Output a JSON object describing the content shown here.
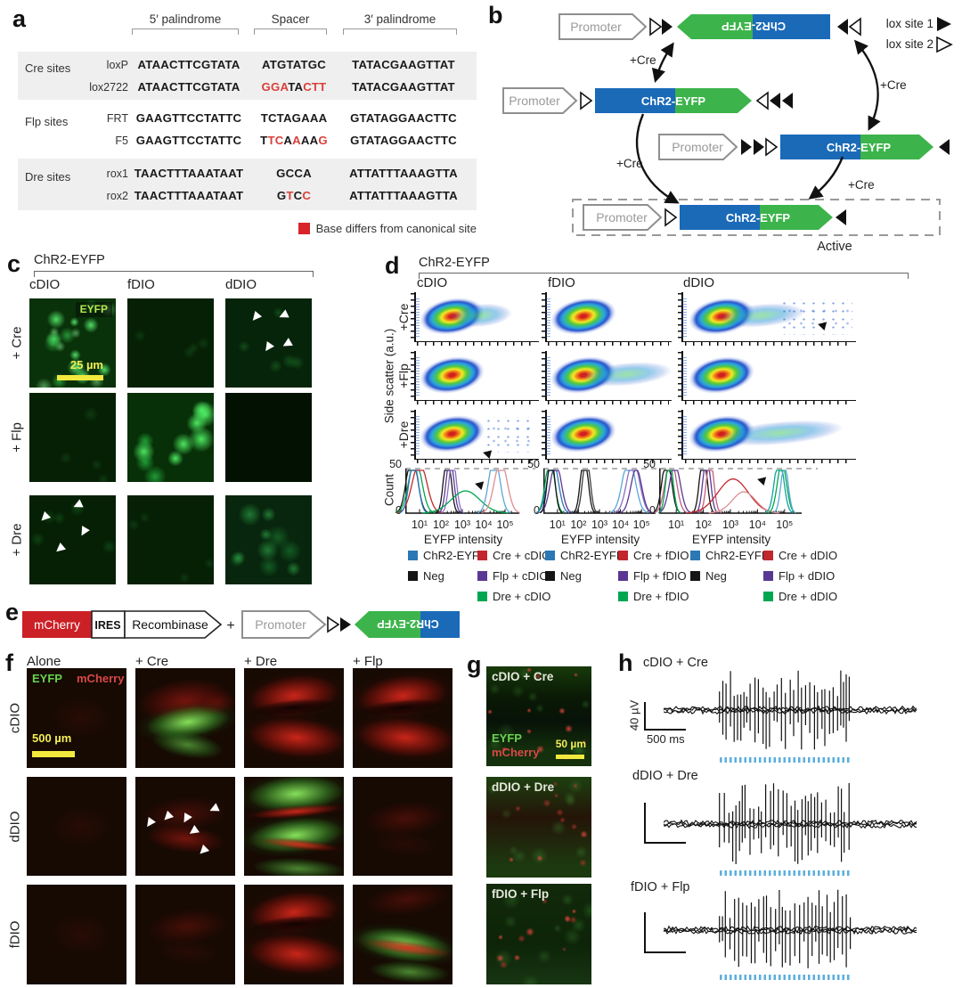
{
  "labels": {
    "a": "a",
    "b": "b",
    "c": "c",
    "d": "d",
    "e": "e",
    "f": "f",
    "g": "g",
    "h": "h"
  },
  "colors": {
    "gene_green": "#3cb44b",
    "gene_blue": "#1a6ab8",
    "mcherry_red": "#cb2026",
    "seq_red": "#d9403a",
    "legend_blue": "#2b78b5",
    "legend_red": "#c2272d",
    "legend_purple": "#5b3794",
    "legend_green": "#00a651",
    "stim_blue": "#5aaede",
    "scalebar_yellow": "#f2e93e"
  },
  "panel_a": {
    "headers": [
      "5′ palindrome",
      "Spacer",
      "3′ palindrome"
    ],
    "groups": [
      {
        "name": "Cre sites",
        "shaded": true,
        "rows": [
          {
            "site": "loxP",
            "p5": "ATAACTTCGTATA",
            "spacer": [
              {
                "t": "ATGTATGC",
                "red": false
              }
            ],
            "p3": "TATACGAAGTTAT"
          },
          {
            "site": "lox2722",
            "p5": "ATAACTTCGTATA",
            "spacer": [
              {
                "t": "GGA",
                "red": true
              },
              {
                "t": "TA",
                "red": false
              },
              {
                "t": "CTT",
                "red": true
              }
            ],
            "p3": "TATACGAAGTTAT"
          }
        ]
      },
      {
        "name": "Flp sites",
        "shaded": false,
        "rows": [
          {
            "site": "FRT",
            "p5": "GAAGTTCCTATTC",
            "spacer": [
              {
                "t": "TCTAGAAA",
                "red": false
              }
            ],
            "p3": "GTATAGGAACTTC"
          },
          {
            "site": "F5",
            "p5": "GAAGTTCCTATTC",
            "spacer": [
              {
                "t": "T",
                "red": false
              },
              {
                "t": "TC",
                "red": true
              },
              {
                "t": "A",
                "red": false
              },
              {
                "t": "A",
                "red": true
              },
              {
                "t": "AA",
                "red": false
              },
              {
                "t": "G",
                "red": true
              }
            ],
            "p3": "GTATAGGAACTTC"
          }
        ]
      },
      {
        "name": "Dre sites",
        "shaded": true,
        "rows": [
          {
            "site": "rox1",
            "p5": "TAACTTTAAATAAT",
            "spacer": [
              {
                "t": "GCCA",
                "red": false
              }
            ],
            "p3": "ATTATTTAAAGTTA"
          },
          {
            "site": "rox2",
            "p5": "TAACTTTAAATAAT",
            "spacer": [
              {
                "t": "G",
                "red": false
              },
              {
                "t": "T",
                "red": true
              },
              {
                "t": "C",
                "red": false
              },
              {
                "t": "C",
                "red": true
              }
            ],
            "p3": "ATTATTTAAAGTTA"
          }
        ]
      }
    ],
    "legend": "Base differs from canonical site"
  },
  "panel_b": {
    "promoter": "Promoter",
    "gene": "ChR2-EYFP",
    "cre": "+Cre",
    "active": "Active",
    "lox1": "lox site 1",
    "lox2": "lox site 2"
  },
  "panel_c": {
    "title": "ChR2-EYFP",
    "cols": [
      "cDIO",
      "fDIO",
      "dDIO"
    ],
    "rows": [
      "+ Cre",
      "+ Flp",
      "+ Dre"
    ],
    "overlay": {
      "eyfp": "EYFP",
      "scale": "25 µm"
    },
    "cells": [
      [
        "bright",
        "dim",
        "dim-arrows-a"
      ],
      [
        "dim",
        "bright2",
        "black"
      ],
      [
        "dim-arrows-b",
        "dim",
        "moderate"
      ]
    ]
  },
  "panel_d": {
    "title": "ChR2-EYFP",
    "cols": [
      "cDIO",
      "fDIO",
      "dDIO"
    ],
    "rows": [
      "+Cre",
      "+Flp",
      "+Dre"
    ],
    "ylabel_scatter": "Side scatter (a.u.)",
    "ylabel_hist": "Count",
    "y_max": "50",
    "y_min": "0",
    "xticks": [
      "10¹",
      "10²",
      "10³",
      "10⁴",
      "10⁵"
    ],
    "xlabel": "EYFP intensity",
    "scatter": [
      [
        {
          "tail": true
        },
        {},
        {
          "tail": true,
          "sparse": true,
          "arrow": [
            0.78,
            0.58
          ]
        }
      ],
      [
        {},
        {
          "tail": true,
          "long": true
        },
        {}
      ],
      [
        {
          "sparse": true,
          "arrow": [
            0.55,
            0.78
          ]
        },
        {},
        {
          "tail": true,
          "long": true
        }
      ]
    ],
    "hists": [
      {
        "arrow": [
          0.6,
          0.3
        ],
        "curves": [
          {
            "c": "#151515",
            "x": 0.03,
            "s": 6,
            "h": 1.4
          },
          {
            "c": "#00a651",
            "x": 0.06,
            "s": 7,
            "h": 1.3
          },
          {
            "c": "#c2272d",
            "x": 0.1,
            "s": 8,
            "h": 1.2
          },
          {
            "c": "#2b78b5",
            "x": 0.045,
            "s": 5,
            "h": 1.25
          },
          {
            "c": "#151515",
            "x": 0.36,
            "s": 4,
            "h": 1.45
          },
          {
            "c": "#5b3794",
            "x": 0.385,
            "s": 4,
            "h": 1.4
          },
          {
            "c": "#8b6fc0",
            "x": 0.41,
            "s": 4,
            "h": 1.3
          },
          {
            "c": "#00a651",
            "x": 0.53,
            "s": 16,
            "h": 0.52
          },
          {
            "c": "#5aa7d8",
            "x": 0.8,
            "s": 6,
            "h": 1.35
          },
          {
            "c": "#dc8e92",
            "x": 0.86,
            "s": 7,
            "h": 1.25
          }
        ]
      },
      {
        "curves": [
          {
            "c": "#00a651",
            "x": 0.03,
            "s": 5,
            "h": 1.3
          },
          {
            "c": "#2b78b5",
            "x": 0.055,
            "s": 6,
            "h": 1.3
          },
          {
            "c": "#5b3794",
            "x": 0.085,
            "s": 6,
            "h": 1.2
          },
          {
            "c": "#151515",
            "x": 0.04,
            "s": 4,
            "h": 1.35
          },
          {
            "c": "#151515",
            "x": 0.355,
            "s": 4,
            "h": 1.45
          },
          {
            "c": "#3a3a3a",
            "x": 0.375,
            "s": 4,
            "h": 1.4
          },
          {
            "c": "#5aa7d8",
            "x": 0.78,
            "s": 7,
            "h": 1.3
          },
          {
            "c": "#8b6fc0",
            "x": 0.82,
            "s": 7,
            "h": 1.25
          },
          {
            "c": "#5b3794",
            "x": 0.85,
            "s": 6,
            "h": 1.05
          }
        ]
      },
      {
        "arrow": [
          0.68,
          0.22
        ],
        "curves": [
          {
            "c": "#151515",
            "x": 0.03,
            "s": 5,
            "h": 1.35
          },
          {
            "c": "#c06080",
            "x": 0.06,
            "s": 6,
            "h": 1.3
          },
          {
            "c": "#5b3794",
            "x": 0.09,
            "s": 6,
            "h": 1.15
          },
          {
            "c": "#00a651",
            "x": 0.05,
            "s": 4,
            "h": 1.25
          },
          {
            "c": "#151515",
            "x": 0.3,
            "s": 4,
            "h": 1.45
          },
          {
            "c": "#5b3794",
            "x": 0.325,
            "s": 4,
            "h": 1.4
          },
          {
            "c": "#c06080",
            "x": 0.35,
            "s": 4,
            "h": 1.3
          },
          {
            "c": "#c2272d",
            "x": 0.52,
            "s": 17,
            "h": 0.8
          },
          {
            "c": "#dc8e92",
            "x": 0.6,
            "s": 13,
            "h": 0.5
          },
          {
            "c": "#11a39b",
            "x": 0.86,
            "s": 5,
            "h": 1.35
          },
          {
            "c": "#00a651",
            "x": 0.88,
            "s": 5,
            "h": 1.2
          },
          {
            "c": "#5aa7d8",
            "x": 0.9,
            "s": 4,
            "h": 1.15
          }
        ]
      }
    ],
    "legends": [
      {
        "a": [
          {
            "c": "#2b78b5",
            "t": "ChR2-EYFP"
          },
          {
            "c": "#151515",
            "t": "Neg"
          }
        ],
        "b": [
          {
            "c": "#c2272d",
            "t": "Cre + cDIO"
          },
          {
            "c": "#5b3794",
            "t": "Flp + cDIO"
          },
          {
            "c": "#00a651",
            "t": "Dre + cDIO"
          }
        ]
      },
      {
        "a": [
          {
            "c": "#2b78b5",
            "t": "ChR2-EYFP"
          },
          {
            "c": "#151515",
            "t": "Neg"
          }
        ],
        "b": [
          {
            "c": "#c2272d",
            "t": "Cre + fDIO"
          },
          {
            "c": "#5b3794",
            "t": "Flp + fDIO"
          },
          {
            "c": "#00a651",
            "t": "Dre + fDIO"
          }
        ]
      },
      {
        "a": [
          {
            "c": "#2b78b5",
            "t": "ChR2-EYFP"
          },
          {
            "c": "#151515",
            "t": "Neg"
          }
        ],
        "b": [
          {
            "c": "#c2272d",
            "t": "Cre + dDIO"
          },
          {
            "c": "#5b3794",
            "t": "Flp + dDIO"
          },
          {
            "c": "#00a651",
            "t": "Dre + dDIO"
          }
        ]
      }
    ]
  },
  "panel_e": {
    "mcherry": "mCherry",
    "ires": "IRES",
    "recombinase": "Recombinase",
    "plus": "+",
    "promoter": "Promoter",
    "gene": "ChR2-EYFP"
  },
  "panel_f": {
    "cols": [
      "Alone",
      "+ Cre",
      "+ Dre",
      "+ Flp"
    ],
    "rows": [
      "cDIO",
      "dDIO",
      "fDIO"
    ],
    "overlay": {
      "eyfp": "EYFP",
      "mcherry": "mCherry",
      "scale": "500 µm"
    },
    "cells": [
      [
        "dark",
        "green-red",
        "red",
        "red"
      ],
      [
        "dark",
        "red-arrows",
        "green-strong",
        "red-dim"
      ],
      [
        "dark",
        "red-dim",
        "red",
        "green-red2"
      ]
    ]
  },
  "panel_g": {
    "overlay": {
      "eyfp": "EYFP",
      "mcherry": "mCherry",
      "scale": "50 µm"
    },
    "images": [
      {
        "title": "cDIO + Cre",
        "type": "g1",
        "overlay": true
      },
      {
        "title": "dDIO + Dre",
        "type": "g2"
      },
      {
        "title": "fDIO + Flp",
        "type": "g3"
      }
    ]
  },
  "panel_h": {
    "traces": [
      {
        "title": "cDIO + Cre",
        "seed": 11,
        "y_scale": "40 µV",
        "x_scale": "500 ms"
      },
      {
        "title": "dDIO + Dre",
        "seed": 23
      },
      {
        "title": "fDIO + Flp",
        "seed": 37
      }
    ]
  }
}
